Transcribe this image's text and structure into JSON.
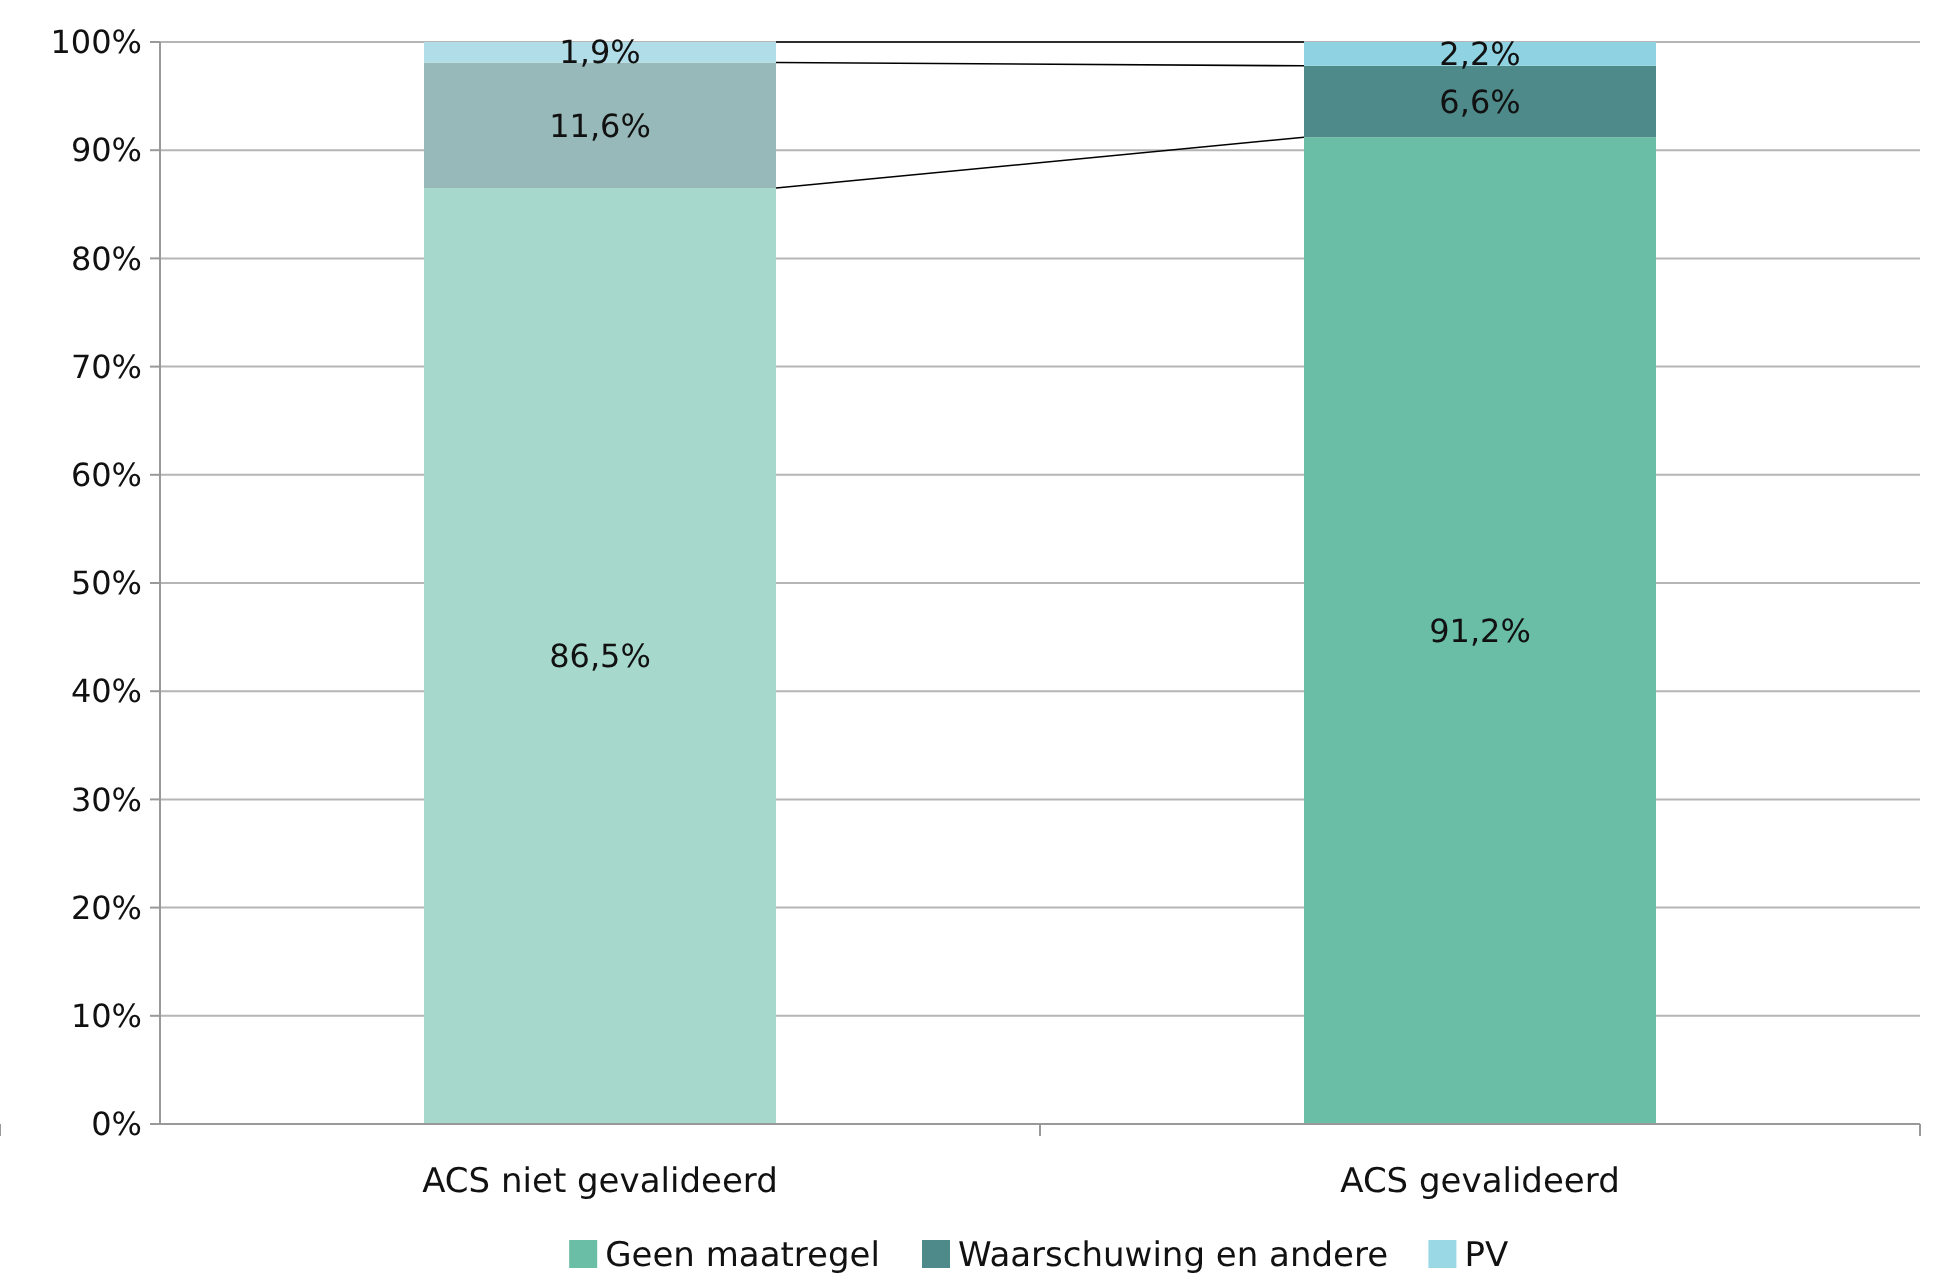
{
  "chart_data": {
    "type": "bar",
    "stacked": true,
    "categories": [
      "ACS niet gevalideerd",
      "ACS gevalideerd"
    ],
    "series": [
      {
        "name": "Geen maatregel",
        "color": "#69bea5",
        "colors": [
          "#a6d9cb",
          "#69bea5"
        ],
        "values": [
          86.5,
          91.2
        ],
        "value_labels": [
          "86,5%",
          "91,2%"
        ]
      },
      {
        "name": "Waarschuwing en andere",
        "color": "#4f8a8b",
        "colors": [
          "#98b9b9",
          "#4f8a8b"
        ],
        "values": [
          11.6,
          6.6
        ],
        "value_labels": [
          "11,6%",
          "6,6%"
        ]
      },
      {
        "name": "PV",
        "color": "#9ad8e6",
        "colors": [
          "#b1dde8",
          "#8fd3e2"
        ],
        "values": [
          1.9,
          2.2
        ],
        "value_labels": [
          "1,9%",
          "2,2%"
        ]
      }
    ],
    "ylim": [
      0,
      100
    ],
    "yticks": [
      {
        "value": 0,
        "label": "0%"
      },
      {
        "value": 10,
        "label": "10%"
      },
      {
        "value": 20,
        "label": "20%"
      },
      {
        "value": 30,
        "label": "30%"
      },
      {
        "value": 40,
        "label": "40%"
      },
      {
        "value": 50,
        "label": "50%"
      },
      {
        "value": 60,
        "label": "60%"
      },
      {
        "value": 70,
        "label": "70%"
      },
      {
        "value": 80,
        "label": "80%"
      },
      {
        "value": 90,
        "label": "90%"
      },
      {
        "value": 100,
        "label": "100%"
      }
    ],
    "grid": "y",
    "legend": "bottom"
  }
}
